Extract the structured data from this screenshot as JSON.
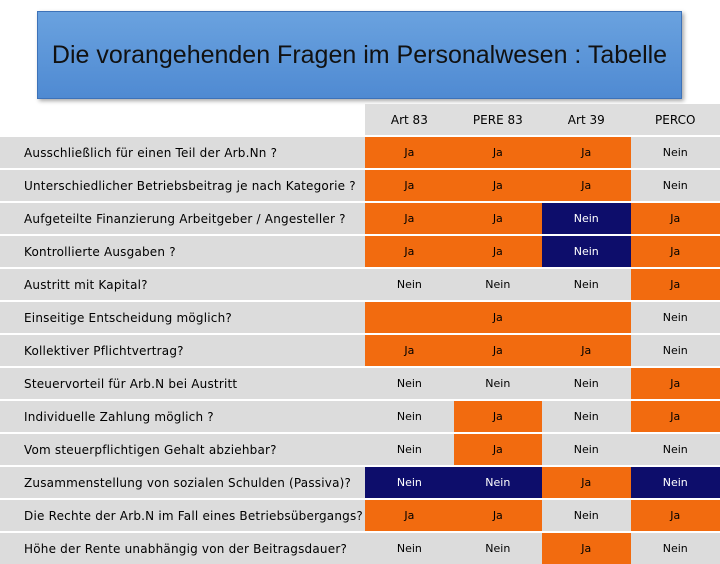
{
  "title": "Die vorangehenden Fragen im Personalwesen : Tabelle",
  "columns": [
    "Art 83",
    "PERE 83",
    "Art 39",
    "PERCO"
  ],
  "rows": [
    {
      "label": "Ausschließlich für einen Teil der Arb.Nn ?",
      "values": [
        "Ja",
        "Ja",
        "Ja",
        "Nein"
      ]
    },
    {
      "label": "Unterschiedlicher Betriebsbeitrag je nach Kategorie ?",
      "values": [
        "Ja",
        "Ja",
        "Ja",
        "Nein"
      ]
    },
    {
      "label": "Aufgeteilte Finanzierung Arbeitgeber / Angesteller ?",
      "values": [
        "Ja",
        "Ja",
        "Nein",
        "Ja"
      ]
    },
    {
      "label": "Kontrollierte Ausgaben ?",
      "values": [
        "Ja",
        "Ja",
        "Nein",
        "Ja"
      ]
    },
    {
      "label": "Austritt mit Kapital?",
      "values": [
        "Nein",
        "Nein",
        "Nein",
        "Ja"
      ]
    },
    {
      "label": "Einseitige Entscheidung möglich?",
      "merged_value": "Ja",
      "last_value": "Nein"
    },
    {
      "label": "Kollektiver Pflichtvertrag?",
      "values": [
        "Ja",
        "Ja",
        "Ja",
        "Nein"
      ]
    },
    {
      "label": "Steuervorteil für Arb.N bei Austritt",
      "values": [
        "Nein",
        "Nein",
        "Nein",
        "Ja"
      ]
    },
    {
      "label": "Individuelle Zahlung möglich ?",
      "values": [
        "Nein",
        "Ja",
        "Nein",
        "Ja"
      ]
    },
    {
      "label": "Vom steuerpflichtigen Gehalt abziehbar?",
      "values": [
        "Nein",
        "Ja",
        "Nein",
        "Nein"
      ]
    },
    {
      "label": "Zusammenstellung von sozialen Schulden (Passiva)?",
      "values": [
        "Nein",
        "Nein",
        "Ja",
        "Nein"
      ]
    },
    {
      "label": "Die Rechte der Arb.N im Fall eines Betriebsübergangs?",
      "values": [
        "Ja",
        "Ja",
        "Nein",
        "Ja"
      ]
    },
    {
      "label": "Höhe der Rente unabhängig von der Beitragsdauer?",
      "values": [
        "Nein",
        "Nein",
        "Ja",
        "Nein"
      ]
    }
  ],
  "colors": {
    "orange": "#f26b0f",
    "navy": "#0d0d6b",
    "gray": "#dcdcdc",
    "title_blue": "#5b94d8"
  }
}
